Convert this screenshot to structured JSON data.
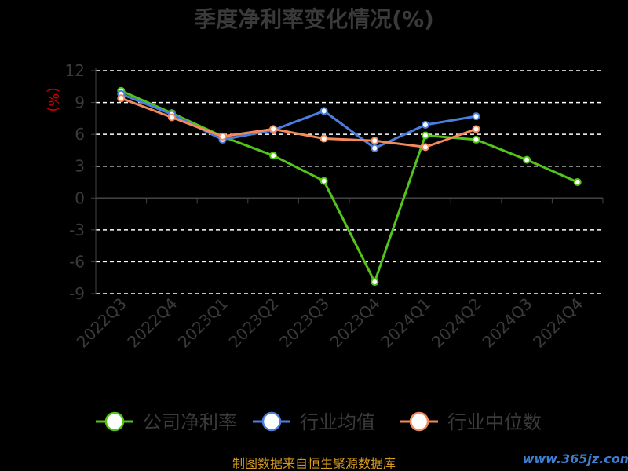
{
  "chart_data": {
    "type": "line",
    "title": "季度净利率变化情况(%)",
    "ylabel": "(%)",
    "categories": [
      "2022Q3",
      "2022Q4",
      "2023Q1",
      "2023Q2",
      "2023Q3",
      "2023Q4",
      "2024Q1",
      "2024Q2",
      "2024Q3",
      "2024Q4"
    ],
    "y_ticks": [
      "12",
      "9",
      "6",
      "3",
      "0",
      "-3",
      "-6",
      "-9"
    ],
    "ylim": [
      -9,
      12
    ],
    "grid": true,
    "legend_position": "bottom",
    "series": [
      {
        "name": "公司净利率",
        "color": "#52c41a",
        "values": [
          10.1,
          8.0,
          5.8,
          4.0,
          1.6,
          -7.9,
          5.9,
          5.5,
          3.6,
          1.5
        ]
      },
      {
        "name": "行业均值",
        "color": "#4a7fe0",
        "values": [
          9.8,
          7.9,
          5.5,
          6.4,
          8.2,
          4.7,
          6.9,
          7.7,
          null,
          null
        ]
      },
      {
        "name": "行业中位数",
        "color": "#f28a5a",
        "values": [
          9.4,
          7.6,
          5.8,
          6.5,
          5.6,
          5.4,
          4.8,
          6.5,
          null,
          null
        ]
      }
    ]
  },
  "source": "制图数据来自恒生聚源数据库",
  "watermark": "www.365jz.com"
}
